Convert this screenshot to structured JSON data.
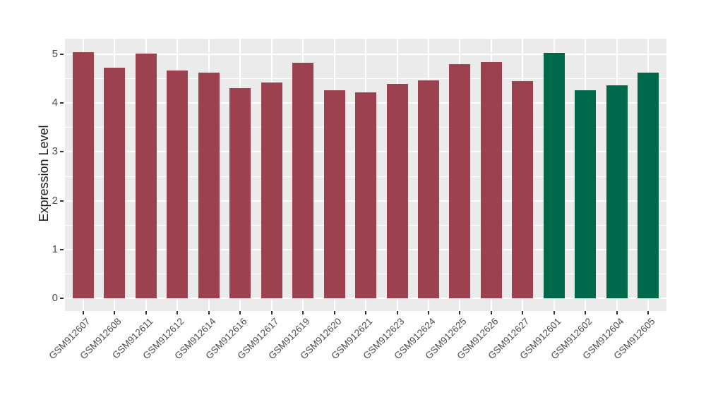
{
  "chart_data": {
    "type": "bar",
    "title": "",
    "xlabel": "",
    "ylabel": "Expression Level",
    "ylim": [
      0,
      5.3
    ],
    "y_ticks": [
      0,
      1,
      2,
      3,
      4,
      5
    ],
    "y_minor_ticks": [
      0.5,
      1.5,
      2.5,
      3.5,
      4.5
    ],
    "grid": true,
    "legend": "none",
    "categories": [
      "GSM912607",
      "GSM912608",
      "GSM912611",
      "GSM912612",
      "GSM912614",
      "GSM912616",
      "GSM912617",
      "GSM912619",
      "GSM912620",
      "GSM912621",
      "GSM912623",
      "GSM912624",
      "GSM912625",
      "GSM912626",
      "GSM912627",
      "GSM912601",
      "GSM912602",
      "GSM912604",
      "GSM912605"
    ],
    "values": [
      5.05,
      4.72,
      5.02,
      4.67,
      4.62,
      4.3,
      4.42,
      4.83,
      4.26,
      4.22,
      4.39,
      4.47,
      4.8,
      4.84,
      4.45,
      5.03,
      4.27,
      4.37,
      4.63
    ],
    "bar_colors": [
      "#9B4150",
      "#9B4150",
      "#9B4150",
      "#9B4150",
      "#9B4150",
      "#9B4150",
      "#9B4150",
      "#9B4150",
      "#9B4150",
      "#9B4150",
      "#9B4150",
      "#9B4150",
      "#9B4150",
      "#9B4150",
      "#9B4150",
      "#00684A",
      "#00684A",
      "#00684A",
      "#00684A"
    ]
  },
  "style": {
    "panel_background": "#EBEBEB",
    "gridline_color": "#FFFFFF",
    "figure_background": "#FFFFFF",
    "maroon": "#9B4150",
    "green": "#00684A",
    "axis_text_color": "#4d4d4d",
    "axis_title_color": "#1a1a1a",
    "tick_mark_color": "#333333"
  }
}
